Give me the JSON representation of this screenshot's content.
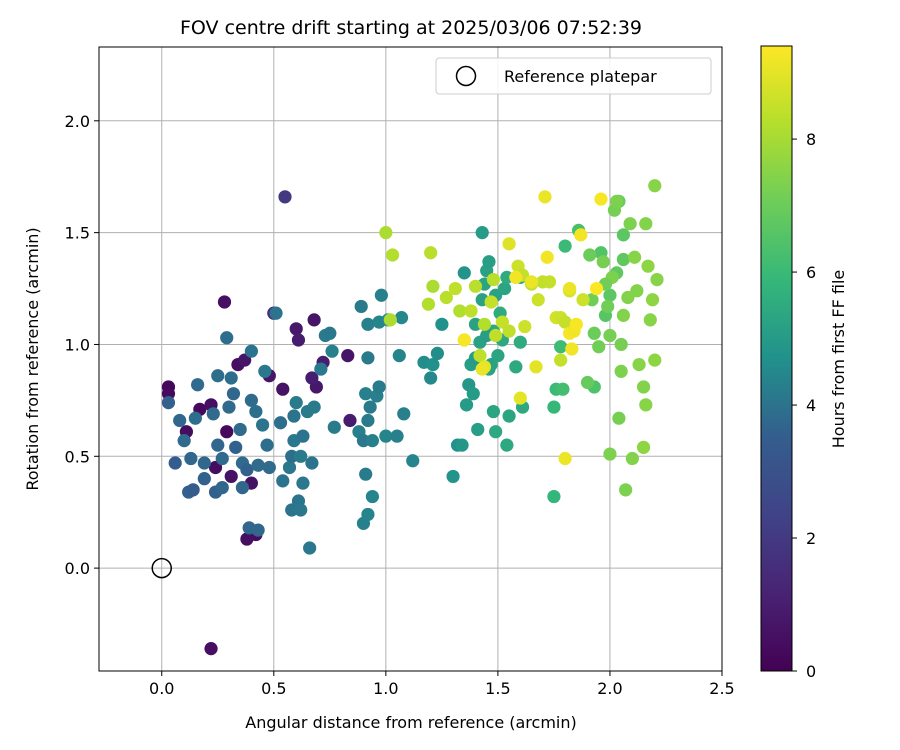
{
  "chart_data": {
    "type": "scatter",
    "title": "FOV centre drift starting at 2025/03/06 07:52:39",
    "xlabel": "Angular distance from reference (arcmin)",
    "ylabel": "Rotation from reference (arcmin)",
    "xlim": [
      -0.28,
      2.5
    ],
    "ylim": [
      -0.46,
      2.33
    ],
    "xticks": [
      0.0,
      0.5,
      1.0,
      1.5,
      2.0,
      2.5
    ],
    "xtick_labels": [
      "0.0",
      "0.5",
      "1.0",
      "1.5",
      "2.0",
      "2.5"
    ],
    "yticks": [
      0.0,
      0.5,
      1.0,
      1.5,
      2.0
    ],
    "ytick_labels": [
      "0.0",
      "0.5",
      "1.0",
      "1.5",
      "2.0"
    ],
    "grid": true,
    "legend": {
      "position": "top-right",
      "entries": [
        "Reference platepar"
      ]
    },
    "reference_point": {
      "x": 0.0,
      "y": 0.0
    },
    "colorbar": {
      "label": "Hours from first FF file",
      "min": 0,
      "max": 9.4,
      "ticks": [
        0,
        2,
        4,
        6,
        8
      ],
      "tick_labels": [
        "0",
        "2",
        "4",
        "6",
        "8"
      ],
      "colormap": "viridis"
    },
    "points": [
      {
        "x": 0.03,
        "y": 0.81,
        "h": 0.2
      },
      {
        "x": 0.03,
        "y": 0.78,
        "h": 0.3
      },
      {
        "x": 0.11,
        "y": 0.61,
        "h": 0.4
      },
      {
        "x": 0.17,
        "y": 0.71,
        "h": 0.3
      },
      {
        "x": 0.22,
        "y": 0.73,
        "h": 0.5
      },
      {
        "x": 0.28,
        "y": 1.19,
        "h": 0.5
      },
      {
        "x": 0.24,
        "y": 0.45,
        "h": 0.4
      },
      {
        "x": 0.29,
        "y": 0.61,
        "h": 0.3
      },
      {
        "x": 0.31,
        "y": 0.41,
        "h": 0.6
      },
      {
        "x": 0.34,
        "y": 0.91,
        "h": 0.5
      },
      {
        "x": 0.37,
        "y": 0.93,
        "h": 0.7
      },
      {
        "x": 0.4,
        "y": 0.38,
        "h": 0.6
      },
      {
        "x": 0.42,
        "y": 0.15,
        "h": 0.4
      },
      {
        "x": 0.38,
        "y": 0.13,
        "h": 0.5
      },
      {
        "x": 0.22,
        "y": -0.36,
        "h": 0.5
      },
      {
        "x": 0.48,
        "y": 0.86,
        "h": 0.7
      },
      {
        "x": 0.54,
        "y": 0.8,
        "h": 0.6
      },
      {
        "x": 0.6,
        "y": 1.07,
        "h": 0.8
      },
      {
        "x": 0.61,
        "y": 1.02,
        "h": 0.9
      },
      {
        "x": 0.68,
        "y": 1.11,
        "h": 0.7
      },
      {
        "x": 0.69,
        "y": 0.81,
        "h": 0.8
      },
      {
        "x": 0.67,
        "y": 0.85,
        "h": 1.0
      },
      {
        "x": 0.72,
        "y": 0.92,
        "h": 1.0
      },
      {
        "x": 0.83,
        "y": 0.95,
        "h": 0.7
      },
      {
        "x": 0.84,
        "y": 0.66,
        "h": 0.9
      },
      {
        "x": 0.5,
        "y": 1.14,
        "h": 1.5
      },
      {
        "x": 0.55,
        "y": 1.66,
        "h": 2.0
      },
      {
        "x": 0.03,
        "y": 0.74,
        "h": 3.6
      },
      {
        "x": 0.06,
        "y": 0.47,
        "h": 3.5
      },
      {
        "x": 0.08,
        "y": 0.66,
        "h": 3.7
      },
      {
        "x": 0.1,
        "y": 0.57,
        "h": 3.8
      },
      {
        "x": 0.12,
        "y": 0.34,
        "h": 3.6
      },
      {
        "x": 0.14,
        "y": 0.35,
        "h": 3.5
      },
      {
        "x": 0.13,
        "y": 0.49,
        "h": 3.7
      },
      {
        "x": 0.15,
        "y": 0.67,
        "h": 3.9
      },
      {
        "x": 0.16,
        "y": 0.82,
        "h": 3.8
      },
      {
        "x": 0.19,
        "y": 0.47,
        "h": 3.7
      },
      {
        "x": 0.19,
        "y": 0.4,
        "h": 3.6
      },
      {
        "x": 0.23,
        "y": 0.69,
        "h": 3.8
      },
      {
        "x": 0.25,
        "y": 0.55,
        "h": 3.7
      },
      {
        "x": 0.24,
        "y": 0.34,
        "h": 3.6
      },
      {
        "x": 0.25,
        "y": 0.86,
        "h": 3.9
      },
      {
        "x": 0.27,
        "y": 0.49,
        "h": 3.8
      },
      {
        "x": 0.27,
        "y": 0.36,
        "h": 3.7
      },
      {
        "x": 0.29,
        "y": 1.03,
        "h": 3.9
      },
      {
        "x": 0.3,
        "y": 0.72,
        "h": 3.8
      },
      {
        "x": 0.31,
        "y": 0.85,
        "h": 3.9
      },
      {
        "x": 0.32,
        "y": 0.78,
        "h": 3.7
      },
      {
        "x": 0.33,
        "y": 0.54,
        "h": 3.6
      },
      {
        "x": 0.35,
        "y": 0.62,
        "h": 3.8
      },
      {
        "x": 0.36,
        "y": 0.36,
        "h": 3.7
      },
      {
        "x": 0.36,
        "y": 0.47,
        "h": 3.8
      },
      {
        "x": 0.38,
        "y": 0.44,
        "h": 3.6
      },
      {
        "x": 0.39,
        "y": 0.18,
        "h": 3.7
      },
      {
        "x": 0.4,
        "y": 0.75,
        "h": 3.8
      },
      {
        "x": 0.4,
        "y": 0.97,
        "h": 4.0
      },
      {
        "x": 0.42,
        "y": 0.7,
        "h": 3.9
      },
      {
        "x": 0.43,
        "y": 0.46,
        "h": 3.8
      },
      {
        "x": 0.43,
        "y": 0.17,
        "h": 3.7
      },
      {
        "x": 0.45,
        "y": 0.64,
        "h": 4.0
      },
      {
        "x": 0.46,
        "y": 0.88,
        "h": 4.1
      },
      {
        "x": 0.47,
        "y": 0.55,
        "h": 3.9
      },
      {
        "x": 0.48,
        "y": 0.45,
        "h": 3.8
      },
      {
        "x": 0.51,
        "y": 1.14,
        "h": 4.0
      },
      {
        "x": 0.53,
        "y": 0.65,
        "h": 3.9
      },
      {
        "x": 0.54,
        "y": 0.39,
        "h": 4.0
      },
      {
        "x": 0.57,
        "y": 0.45,
        "h": 4.1
      },
      {
        "x": 0.58,
        "y": 0.5,
        "h": 3.9
      },
      {
        "x": 0.58,
        "y": 0.26,
        "h": 4.0
      },
      {
        "x": 0.59,
        "y": 0.57,
        "h": 4.1
      },
      {
        "x": 0.59,
        "y": 0.68,
        "h": 4.0
      },
      {
        "x": 0.6,
        "y": 0.74,
        "h": 4.2
      },
      {
        "x": 0.61,
        "y": 0.3,
        "h": 4.0
      },
      {
        "x": 0.62,
        "y": 0.26,
        "h": 4.1
      },
      {
        "x": 0.62,
        "y": 0.5,
        "h": 4.2
      },
      {
        "x": 0.63,
        "y": 0.59,
        "h": 4.0
      },
      {
        "x": 0.63,
        "y": 0.38,
        "h": 4.1
      },
      {
        "x": 0.65,
        "y": 0.7,
        "h": 4.2
      },
      {
        "x": 0.66,
        "y": 0.09,
        "h": 4.1
      },
      {
        "x": 0.67,
        "y": 0.47,
        "h": 4.0
      },
      {
        "x": 0.68,
        "y": 0.72,
        "h": 4.2
      },
      {
        "x": 0.71,
        "y": 0.89,
        "h": 4.1
      },
      {
        "x": 0.73,
        "y": 1.04,
        "h": 4.2
      },
      {
        "x": 0.75,
        "y": 1.05,
        "h": 4.1
      },
      {
        "x": 0.76,
        "y": 0.97,
        "h": 4.3
      },
      {
        "x": 0.77,
        "y": 0.63,
        "h": 4.2
      },
      {
        "x": 0.88,
        "y": 0.61,
        "h": 4.3
      },
      {
        "x": 0.89,
        "y": 1.17,
        "h": 4.2
      },
      {
        "x": 0.9,
        "y": 0.2,
        "h": 4.3
      },
      {
        "x": 0.9,
        "y": 0.57,
        "h": 4.1
      },
      {
        "x": 0.91,
        "y": 0.42,
        "h": 4.2
      },
      {
        "x": 0.91,
        "y": 0.78,
        "h": 4.3
      },
      {
        "x": 0.92,
        "y": 0.66,
        "h": 4.2
      },
      {
        "x": 0.92,
        "y": 0.24,
        "h": 4.4
      },
      {
        "x": 0.92,
        "y": 1.09,
        "h": 4.3
      },
      {
        "x": 0.93,
        "y": 0.72,
        "h": 4.2
      },
      {
        "x": 0.94,
        "y": 0.57,
        "h": 4.3
      },
      {
        "x": 0.94,
        "y": 0.32,
        "h": 4.4
      },
      {
        "x": 0.96,
        "y": 0.77,
        "h": 4.3
      },
      {
        "x": 0.97,
        "y": 0.81,
        "h": 4.2
      },
      {
        "x": 0.97,
        "y": 1.1,
        "h": 4.4
      },
      {
        "x": 0.98,
        "y": 1.22,
        "h": 4.3
      },
      {
        "x": 1.0,
        "y": 0.59,
        "h": 4.4
      },
      {
        "x": 1.01,
        "y": 1.11,
        "h": 4.5
      },
      {
        "x": 1.05,
        "y": 0.59,
        "h": 4.3
      },
      {
        "x": 1.06,
        "y": 0.95,
        "h": 4.4
      },
      {
        "x": 1.07,
        "y": 1.12,
        "h": 4.5
      },
      {
        "x": 1.08,
        "y": 0.69,
        "h": 4.3
      },
      {
        "x": 1.12,
        "y": 0.48,
        "h": 4.4
      },
      {
        "x": 0.92,
        "y": 0.94,
        "h": 4.2
      },
      {
        "x": 1.17,
        "y": 0.92,
        "h": 4.6
      },
      {
        "x": 1.2,
        "y": 0.85,
        "h": 4.5
      },
      {
        "x": 1.21,
        "y": 0.91,
        "h": 4.7
      },
      {
        "x": 1.23,
        "y": 0.96,
        "h": 4.6
      },
      {
        "x": 1.25,
        "y": 1.09,
        "h": 4.7
      },
      {
        "x": 1.3,
        "y": 0.41,
        "h": 4.8
      },
      {
        "x": 1.32,
        "y": 0.55,
        "h": 4.7
      },
      {
        "x": 1.34,
        "y": 0.55,
        "h": 4.9
      },
      {
        "x": 1.35,
        "y": 1.32,
        "h": 4.8
      },
      {
        "x": 1.36,
        "y": 0.73,
        "h": 5.0
      },
      {
        "x": 1.37,
        "y": 0.82,
        "h": 4.9
      },
      {
        "x": 1.38,
        "y": 0.91,
        "h": 5.1
      },
      {
        "x": 1.39,
        "y": 0.78,
        "h": 5.0
      },
      {
        "x": 1.4,
        "y": 1.09,
        "h": 5.2
      },
      {
        "x": 1.41,
        "y": 0.62,
        "h": 5.1
      },
      {
        "x": 1.42,
        "y": 1.01,
        "h": 5.2
      },
      {
        "x": 1.43,
        "y": 1.5,
        "h": 5.0
      },
      {
        "x": 1.44,
        "y": 1.27,
        "h": 5.3
      },
      {
        "x": 1.45,
        "y": 1.33,
        "h": 5.2
      },
      {
        "x": 1.46,
        "y": 1.37,
        "h": 5.1
      },
      {
        "x": 1.46,
        "y": 0.89,
        "h": 5.3
      },
      {
        "x": 1.47,
        "y": 0.91,
        "h": 5.2
      },
      {
        "x": 1.48,
        "y": 1.06,
        "h": 5.4
      },
      {
        "x": 1.48,
        "y": 0.7,
        "h": 5.3
      },
      {
        "x": 1.49,
        "y": 1.22,
        "h": 5.2
      },
      {
        "x": 1.49,
        "y": 0.61,
        "h": 5.4
      },
      {
        "x": 1.5,
        "y": 0.95,
        "h": 5.3
      },
      {
        "x": 1.51,
        "y": 1.14,
        "h": 5.5
      },
      {
        "x": 1.52,
        "y": 1.02,
        "h": 5.4
      },
      {
        "x": 1.53,
        "y": 1.25,
        "h": 5.3
      },
      {
        "x": 1.54,
        "y": 1.3,
        "h": 5.5
      },
      {
        "x": 1.54,
        "y": 0.55,
        "h": 5.4
      },
      {
        "x": 1.55,
        "y": 0.68,
        "h": 5.3
      },
      {
        "x": 1.58,
        "y": 0.9,
        "h": 5.4
      },
      {
        "x": 1.6,
        "y": 1.01,
        "h": 5.5
      },
      {
        "x": 1.6,
        "y": 1.3,
        "h": 5.6
      },
      {
        "x": 1.61,
        "y": 0.72,
        "h": 5.4
      },
      {
        "x": 1.43,
        "y": 1.2,
        "h": 5.2
      },
      {
        "x": 1.45,
        "y": 1.04,
        "h": 5.1
      },
      {
        "x": 1.4,
        "y": 0.94,
        "h": 5.0
      },
      {
        "x": 1.75,
        "y": 0.32,
        "h": 5.8
      },
      {
        "x": 1.75,
        "y": 0.72,
        "h": 5.9
      },
      {
        "x": 1.76,
        "y": 0.8,
        "h": 6.0
      },
      {
        "x": 1.78,
        "y": 0.99,
        "h": 6.1
      },
      {
        "x": 1.79,
        "y": 0.8,
        "h": 6.2
      },
      {
        "x": 1.8,
        "y": 1.44,
        "h": 6.0
      },
      {
        "x": 1.86,
        "y": 1.51,
        "h": 6.3
      },
      {
        "x": 1.93,
        "y": 0.81,
        "h": 6.4
      },
      {
        "x": 1.96,
        "y": 1.41,
        "h": 6.5
      },
      {
        "x": 1.98,
        "y": 1.13,
        "h": 6.6
      },
      {
        "x": 2.0,
        "y": 1.22,
        "h": 6.7
      },
      {
        "x": 2.03,
        "y": 1.32,
        "h": 6.8
      },
      {
        "x": 2.04,
        "y": 1.64,
        "h": 6.9
      },
      {
        "x": 2.06,
        "y": 1.38,
        "h": 6.8
      },
      {
        "x": 2.06,
        "y": 1.49,
        "h": 6.7
      },
      {
        "x": 1.9,
        "y": 0.83,
        "h": 6.9
      },
      {
        "x": 1.91,
        "y": 1.4,
        "h": 7.0
      },
      {
        "x": 1.92,
        "y": 1.2,
        "h": 7.1
      },
      {
        "x": 1.93,
        "y": 1.05,
        "h": 7.0
      },
      {
        "x": 1.95,
        "y": 0.99,
        "h": 7.1
      },
      {
        "x": 1.97,
        "y": 1.37,
        "h": 7.2
      },
      {
        "x": 1.99,
        "y": 1.17,
        "h": 7.1
      },
      {
        "x": 2.0,
        "y": 1.04,
        "h": 7.2
      },
      {
        "x": 2.01,
        "y": 1.3,
        "h": 7.3
      },
      {
        "x": 2.02,
        "y": 1.6,
        "h": 7.2
      },
      {
        "x": 2.03,
        "y": 1.64,
        "h": 7.3
      },
      {
        "x": 2.04,
        "y": 0.67,
        "h": 7.2
      },
      {
        "x": 2.05,
        "y": 0.88,
        "h": 7.3
      },
      {
        "x": 2.06,
        "y": 1.13,
        "h": 7.4
      },
      {
        "x": 2.07,
        "y": 0.35,
        "h": 7.3
      },
      {
        "x": 2.08,
        "y": 1.21,
        "h": 7.4
      },
      {
        "x": 2.09,
        "y": 1.54,
        "h": 7.3
      },
      {
        "x": 2.1,
        "y": 0.49,
        "h": 7.4
      },
      {
        "x": 2.11,
        "y": 1.39,
        "h": 7.5
      },
      {
        "x": 2.12,
        "y": 1.24,
        "h": 7.4
      },
      {
        "x": 2.13,
        "y": 0.91,
        "h": 7.5
      },
      {
        "x": 2.15,
        "y": 0.81,
        "h": 7.4
      },
      {
        "x": 2.16,
        "y": 0.73,
        "h": 7.5
      },
      {
        "x": 2.17,
        "y": 1.35,
        "h": 7.6
      },
      {
        "x": 2.18,
        "y": 1.11,
        "h": 7.5
      },
      {
        "x": 2.19,
        "y": 1.2,
        "h": 7.6
      },
      {
        "x": 2.2,
        "y": 1.71,
        "h": 7.5
      },
      {
        "x": 2.2,
        "y": 0.93,
        "h": 7.6
      },
      {
        "x": 2.21,
        "y": 1.29,
        "h": 7.5
      },
      {
        "x": 2.16,
        "y": 1.54,
        "h": 7.4
      },
      {
        "x": 2.15,
        "y": 0.54,
        "h": 7.6
      },
      {
        "x": 2.0,
        "y": 0.51,
        "h": 7.3
      },
      {
        "x": 2.05,
        "y": 1.0,
        "h": 7.2
      },
      {
        "x": 1.98,
        "y": 1.27,
        "h": 7.1
      },
      {
        "x": 1.0,
        "y": 1.5,
        "h": 8.1
      },
      {
        "x": 1.03,
        "y": 1.4,
        "h": 8.2
      },
      {
        "x": 1.02,
        "y": 1.11,
        "h": 8.1
      },
      {
        "x": 1.2,
        "y": 1.41,
        "h": 8.3
      },
      {
        "x": 1.19,
        "y": 1.18,
        "h": 8.2
      },
      {
        "x": 1.21,
        "y": 1.26,
        "h": 8.1
      },
      {
        "x": 1.27,
        "y": 1.21,
        "h": 8.3
      },
      {
        "x": 1.31,
        "y": 1.25,
        "h": 8.4
      },
      {
        "x": 1.33,
        "y": 1.15,
        "h": 8.2
      },
      {
        "x": 1.35,
        "y": 1.02,
        "h": 8.3
      },
      {
        "x": 1.38,
        "y": 1.15,
        "h": 8.4
      },
      {
        "x": 1.4,
        "y": 1.26,
        "h": 8.3
      },
      {
        "x": 1.42,
        "y": 0.95,
        "h": 8.4
      },
      {
        "x": 1.44,
        "y": 1.09,
        "h": 8.2
      },
      {
        "x": 1.47,
        "y": 1.19,
        "h": 8.5
      },
      {
        "x": 1.48,
        "y": 1.29,
        "h": 8.3
      },
      {
        "x": 1.49,
        "y": 1.04,
        "h": 8.4
      },
      {
        "x": 1.52,
        "y": 1.1,
        "h": 8.5
      },
      {
        "x": 1.55,
        "y": 1.06,
        "h": 8.4
      },
      {
        "x": 1.59,
        "y": 1.35,
        "h": 8.6
      },
      {
        "x": 1.61,
        "y": 1.31,
        "h": 8.5
      },
      {
        "x": 1.62,
        "y": 1.08,
        "h": 8.6
      },
      {
        "x": 1.65,
        "y": 1.27,
        "h": 8.5
      },
      {
        "x": 1.68,
        "y": 1.2,
        "h": 8.6
      },
      {
        "x": 1.7,
        "y": 1.28,
        "h": 8.4
      },
      {
        "x": 1.73,
        "y": 1.28,
        "h": 8.5
      },
      {
        "x": 1.76,
        "y": 1.12,
        "h": 8.7
      },
      {
        "x": 1.78,
        "y": 1.12,
        "h": 8.6
      },
      {
        "x": 1.8,
        "y": 1.1,
        "h": 8.5
      },
      {
        "x": 1.82,
        "y": 1.24,
        "h": 8.7
      },
      {
        "x": 1.88,
        "y": 1.2,
        "h": 8.6
      },
      {
        "x": 1.78,
        "y": 0.93,
        "h": 8.5
      },
      {
        "x": 1.55,
        "y": 1.45,
        "h": 8.9
      },
      {
        "x": 1.6,
        "y": 0.76,
        "h": 9.0
      },
      {
        "x": 1.65,
        "y": 1.28,
        "h": 9.1
      },
      {
        "x": 1.67,
        "y": 0.9,
        "h": 9.0
      },
      {
        "x": 1.71,
        "y": 1.66,
        "h": 9.1
      },
      {
        "x": 1.72,
        "y": 1.39,
        "h": 9.2
      },
      {
        "x": 1.8,
        "y": 0.49,
        "h": 9.1
      },
      {
        "x": 1.83,
        "y": 0.98,
        "h": 9.2
      },
      {
        "x": 1.82,
        "y": 1.05,
        "h": 9.3
      },
      {
        "x": 1.84,
        "y": 1.06,
        "h": 9.2
      },
      {
        "x": 1.85,
        "y": 1.09,
        "h": 9.3
      },
      {
        "x": 1.82,
        "y": 1.25,
        "h": 9.1
      },
      {
        "x": 1.87,
        "y": 1.49,
        "h": 9.2
      },
      {
        "x": 1.96,
        "y": 1.65,
        "h": 9.3
      },
      {
        "x": 1.94,
        "y": 1.25,
        "h": 9.4
      },
      {
        "x": 1.44,
        "y": 0.9,
        "h": 9.0
      },
      {
        "x": 1.43,
        "y": 0.89,
        "h": 9.1
      },
      {
        "x": 1.58,
        "y": 1.3,
        "h": 9.2
      },
      {
        "x": 1.35,
        "y": 1.02,
        "h": 9.3
      }
    ]
  }
}
